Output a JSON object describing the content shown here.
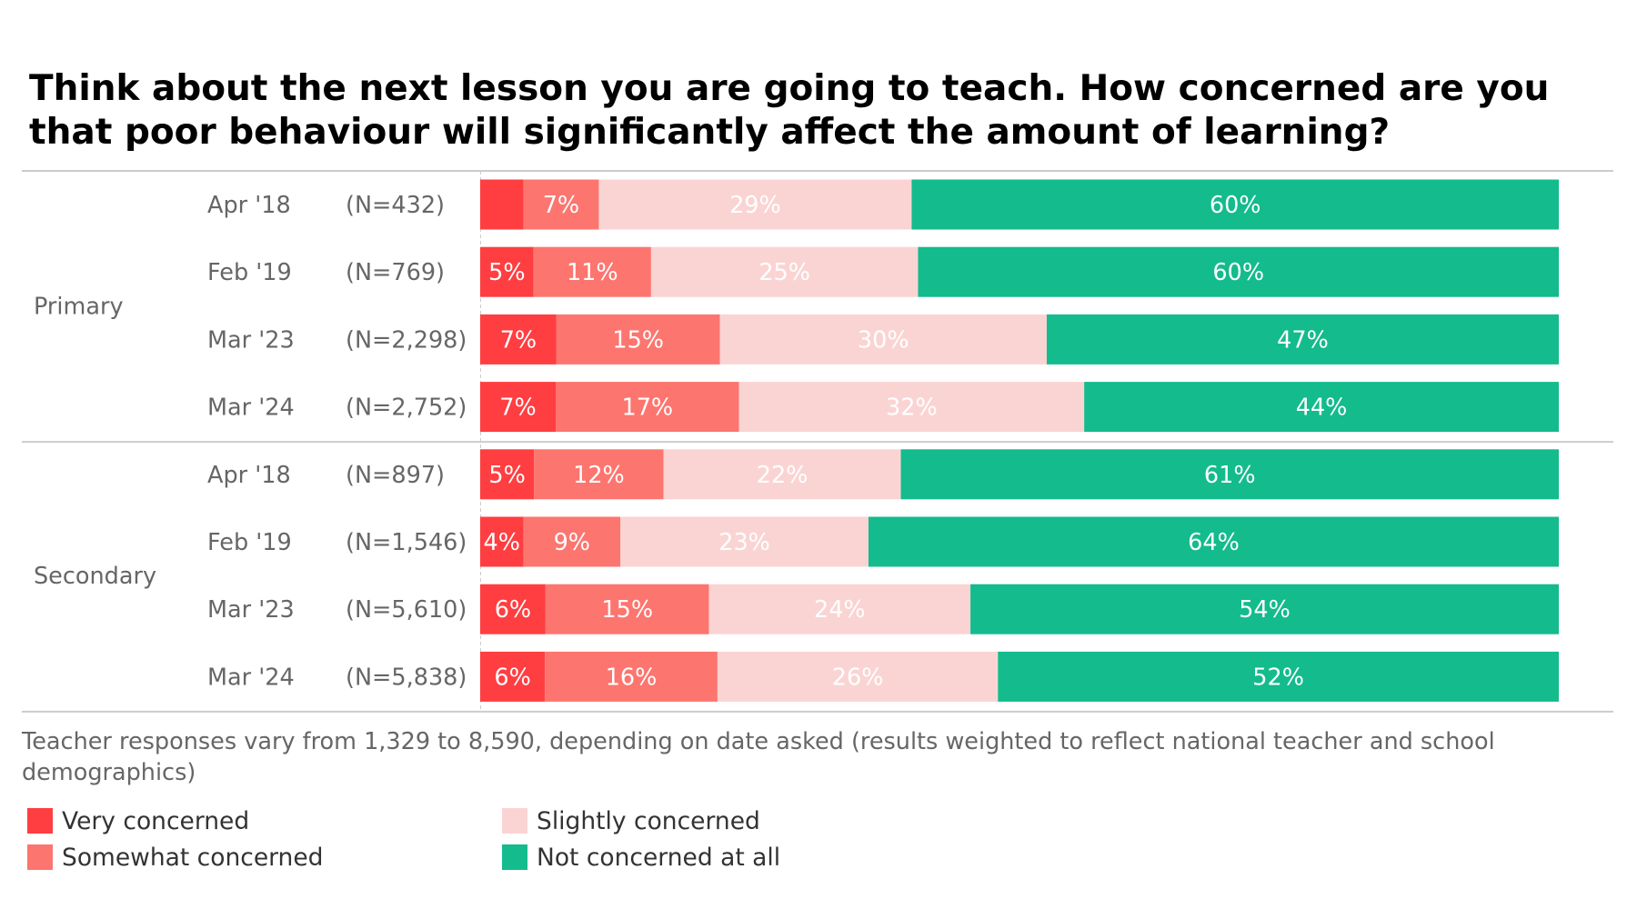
{
  "chart_data": {
    "type": "bar",
    "orientation": "horizontal",
    "stacked": true,
    "normalized": true,
    "title": "Think about the next lesson you are going to teach. How concerned are you that poor behaviour will significantly affect the amount of learning?",
    "title_lines": [
      "Think about the next lesson you are going to teach. How concerned are you",
      "that poor behaviour will significantly affect the amount of learning?"
    ],
    "xlabel": "",
    "ylabel": "",
    "xlim": [
      0,
      100
    ],
    "grid": false,
    "legend_position": "bottom-left",
    "footnote": "Teacher responses vary from 1,329 to 8,590, depending on date asked (results weighted to reflect national teacher and school demographics)",
    "footnote_lines": [
      "Teacher responses vary from 1,329 to 8,590, depending on date asked (results weighted to reflect national teacher and school",
      "demographics)"
    ],
    "series": [
      {
        "name": "Very concerned",
        "color": "#FF3E41"
      },
      {
        "name": "Somewhat concerned",
        "color": "#FD756F"
      },
      {
        "name": "Slightly concerned",
        "color": "#FAD4D3"
      },
      {
        "name": "Not concerned at all",
        "color": "#13BB8D"
      }
    ],
    "groups": [
      {
        "label": "Primary",
        "rows": [
          {
            "date": "Apr '18",
            "n": "(N=432)",
            "values": [
              4,
              7,
              29,
              60
            ],
            "labels": [
              "",
              "7%",
              "29%",
              "60%"
            ]
          },
          {
            "date": "Feb '19",
            "n": "(N=769)",
            "values": [
              5,
              11,
              25,
              60
            ],
            "labels": [
              "5%",
              "11%",
              "25%",
              "60%"
            ]
          },
          {
            "date": "Mar '23",
            "n": "(N=2,298)",
            "values": [
              7,
              15,
              30,
              47
            ],
            "labels": [
              "7%",
              "15%",
              "30%",
              "47%"
            ]
          },
          {
            "date": "Mar '24",
            "n": "(N=2,752)",
            "values": [
              7,
              17,
              32,
              44
            ],
            "labels": [
              "7%",
              "17%",
              "32%",
              "44%"
            ]
          }
        ]
      },
      {
        "label": "Secondary",
        "rows": [
          {
            "date": "Apr '18",
            "n": "(N=897)",
            "values": [
              5,
              12,
              22,
              61
            ],
            "labels": [
              "5%",
              "12%",
              "22%",
              "61%"
            ]
          },
          {
            "date": "Feb '19",
            "n": "(N=1,546)",
            "values": [
              4,
              9,
              23,
              64
            ],
            "labels": [
              "4%",
              "9%",
              "23%",
              "64%"
            ]
          },
          {
            "date": "Mar '23",
            "n": "(N=5,610)",
            "values": [
              6,
              15,
              24,
              54
            ],
            "labels": [
              "6%",
              "15%",
              "24%",
              "54%"
            ]
          },
          {
            "date": "Mar '24",
            "n": "(N=5,838)",
            "values": [
              6,
              16,
              26,
              52
            ],
            "labels": [
              "6%",
              "16%",
              "26%",
              "52%"
            ]
          }
        ]
      }
    ]
  },
  "colors": {
    "label_text": "#666666",
    "divider": "#CCCCCC",
    "segment_label_text": "#FFFFFF"
  }
}
